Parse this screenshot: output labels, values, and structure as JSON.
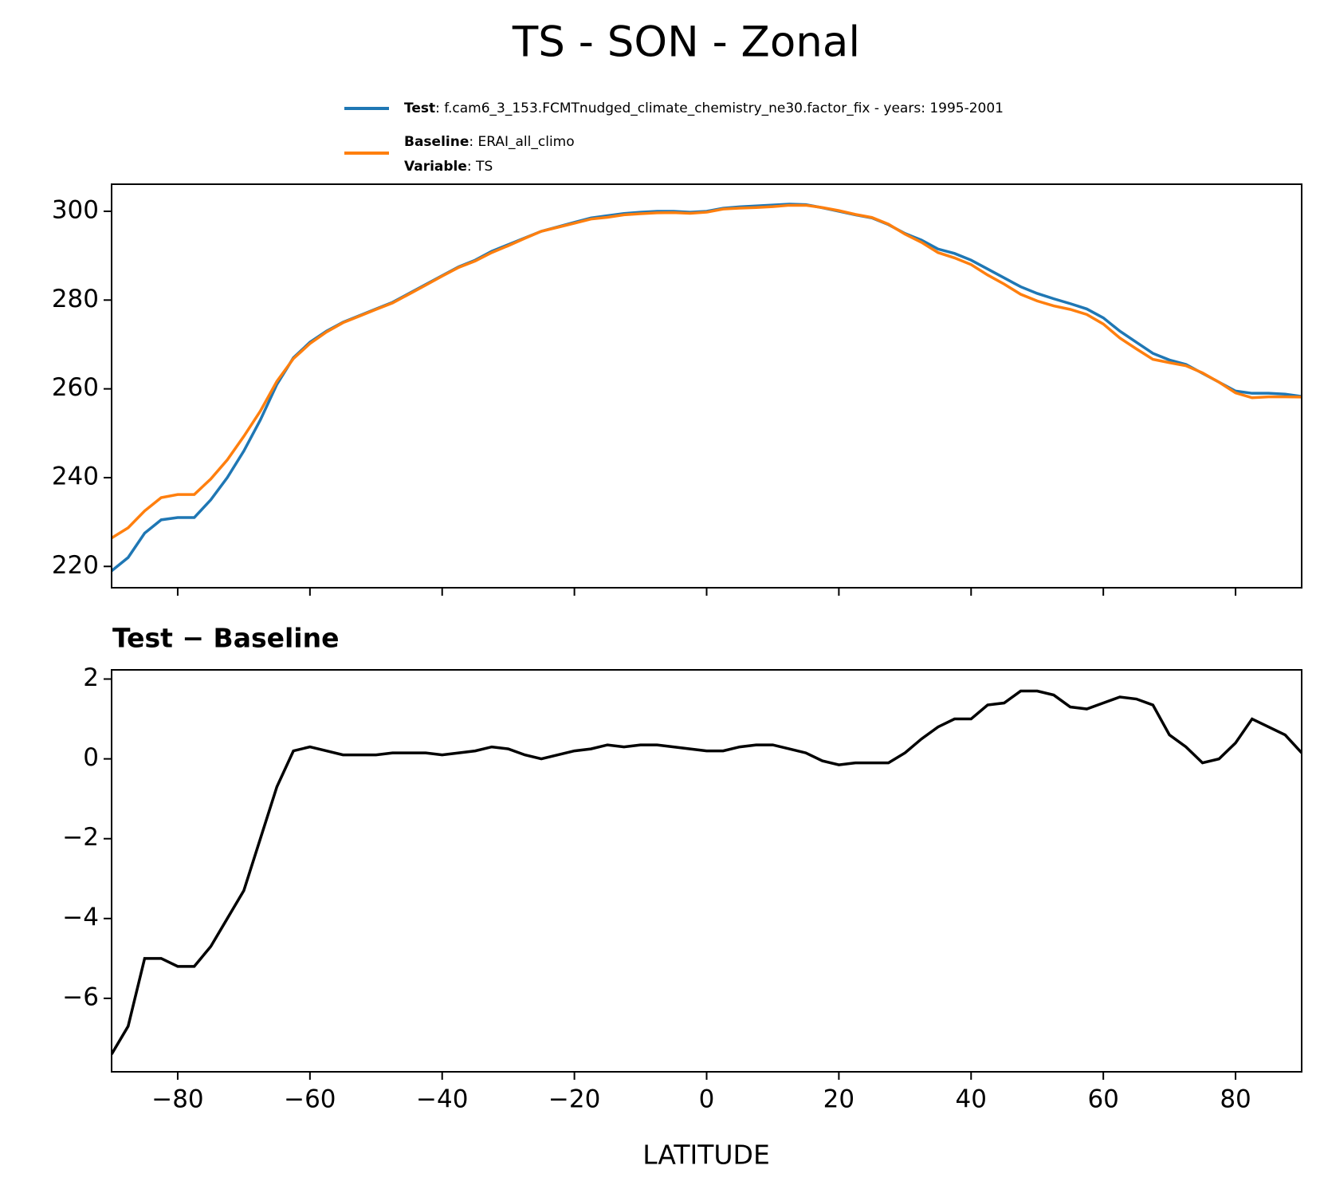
{
  "chart_data": [
    {
      "type": "line",
      "title": "TS - SON - Zonal",
      "x": [
        -90,
        -87.5,
        -85,
        -82.5,
        -80,
        -77.5,
        -75,
        -72.5,
        -70,
        -67.5,
        -65,
        -62.5,
        -60,
        -57.5,
        -55,
        -52.5,
        -50,
        -47.5,
        -45,
        -42.5,
        -40,
        -37.5,
        -35,
        -32.5,
        -30,
        -27.5,
        -25,
        -22.5,
        -20,
        -17.5,
        -15,
        -12.5,
        -10,
        -7.5,
        -5,
        -2.5,
        0,
        2.5,
        5,
        7.5,
        10,
        12.5,
        15,
        17.5,
        20,
        22.5,
        25,
        27.5,
        30,
        32.5,
        35,
        37.5,
        40,
        42.5,
        45,
        47.5,
        50,
        52.5,
        55,
        57.5,
        60,
        62.5,
        65,
        67.5,
        70,
        72.5,
        75,
        77.5,
        80,
        82.5,
        85,
        87.5,
        90
      ],
      "series": [
        {
          "name": "Test",
          "description": ": f.cam6_3_153.FCMTnudged_climate_chemistry_ne30.factor_fix - years: 1995-2001",
          "color": "#1f77b4",
          "values": [
            219,
            222,
            227.5,
            230.5,
            231,
            231,
            235,
            240,
            246,
            253,
            261,
            267,
            270.5,
            273,
            275,
            276.5,
            278,
            279.5,
            281.5,
            283.5,
            285.5,
            287.5,
            289,
            291,
            292.5,
            294,
            295.5,
            296.5,
            297.5,
            298.5,
            299,
            299.5,
            299.8,
            300,
            300,
            299.8,
            300,
            300.7,
            301,
            301.2,
            301.4,
            301.6,
            301.5,
            300.8,
            300,
            299.2,
            298.5,
            297,
            295,
            293.5,
            291.5,
            290.5,
            289,
            287,
            285,
            283,
            281.5,
            280.3,
            279.2,
            278,
            276,
            273,
            270.5,
            268,
            266.5,
            265.5,
            263.5,
            261.5,
            259.5,
            259,
            259,
            258.8,
            258.3
          ]
        },
        {
          "name": "Baseline",
          "description": ": ERAI_all_climo",
          "color": "#ff7f0e",
          "values": [
            226.4,
            228.7,
            232.5,
            235.5,
            236.2,
            236.2,
            239.7,
            244,
            249.3,
            255,
            261.7,
            266.8,
            270.2,
            272.8,
            274.9,
            276.4,
            277.9,
            279.35,
            281.35,
            283.35,
            285.4,
            287.35,
            288.8,
            290.7,
            292.25,
            293.9,
            295.5,
            296.4,
            297.3,
            298.25,
            298.65,
            299.2,
            299.45,
            299.65,
            299.7,
            299.55,
            299.8,
            300.5,
            300.7,
            300.85,
            301.05,
            301.35,
            301.35,
            300.85,
            300.15,
            299.3,
            298.6,
            297.1,
            294.85,
            293,
            290.7,
            289.5,
            288,
            285.65,
            283.6,
            281.3,
            279.8,
            278.7,
            277.9,
            276.75,
            274.6,
            271.45,
            269,
            266.65,
            265.9,
            265.2,
            263.6,
            261.5,
            259.1,
            258,
            258.2,
            258.2,
            258.15
          ]
        }
      ],
      "legend_extra": {
        "label": "Variable",
        "text": ": TS"
      },
      "xlim": [
        -90,
        90
      ],
      "xticks": [
        -80,
        -60,
        -40,
        -20,
        0,
        20,
        40,
        60,
        80
      ],
      "ylim": [
        215.2,
        306.1
      ],
      "yticks": [
        220,
        240,
        260,
        280,
        300
      ]
    },
    {
      "type": "line",
      "title": "Test − Baseline",
      "xlabel": "LATITUDE",
      "x": [
        -90,
        -87.5,
        -85,
        -82.5,
        -80,
        -77.5,
        -75,
        -72.5,
        -70,
        -67.5,
        -65,
        -62.5,
        -60,
        -57.5,
        -55,
        -52.5,
        -50,
        -47.5,
        -45,
        -42.5,
        -40,
        -37.5,
        -35,
        -32.5,
        -30,
        -27.5,
        -25,
        -22.5,
        -20,
        -17.5,
        -15,
        -12.5,
        -10,
        -7.5,
        -5,
        -2.5,
        0,
        2.5,
        5,
        7.5,
        10,
        12.5,
        15,
        17.5,
        20,
        22.5,
        25,
        27.5,
        30,
        32.5,
        35,
        37.5,
        40,
        42.5,
        45,
        47.5,
        50,
        52.5,
        55,
        57.5,
        60,
        62.5,
        65,
        67.5,
        70,
        72.5,
        75,
        77.5,
        80,
        82.5,
        85,
        87.5,
        90
      ],
      "series": [
        {
          "color": "#000000",
          "values": [
            -7.4,
            -6.7,
            -5.0,
            -5.0,
            -5.2,
            -5.2,
            -4.7,
            -4.0,
            -3.3,
            -2.0,
            -0.7,
            0.2,
            0.3,
            0.2,
            0.1,
            0.1,
            0.1,
            0.15,
            0.15,
            0.15,
            0.1,
            0.15,
            0.2,
            0.3,
            0.25,
            0.1,
            0.0,
            0.1,
            0.2,
            0.25,
            0.35,
            0.3,
            0.35,
            0.35,
            0.3,
            0.25,
            0.2,
            0.2,
            0.3,
            0.35,
            0.35,
            0.25,
            0.15,
            -0.05,
            -0.15,
            -0.1,
            -0.1,
            -0.1,
            0.15,
            0.5,
            0.8,
            1.0,
            1.0,
            1.35,
            1.4,
            1.7,
            1.7,
            1.6,
            1.3,
            1.25,
            1.4,
            1.55,
            1.5,
            1.35,
            0.6,
            0.3,
            -0.1,
            0.0,
            0.4,
            1.0,
            0.8,
            0.6,
            0.15
          ]
        }
      ],
      "xlim": [
        -90,
        90
      ],
      "xticks": [
        {
          "value": -80,
          "label": "−80"
        },
        {
          "value": -60,
          "label": "−60"
        },
        {
          "value": -40,
          "label": "−40"
        },
        {
          "value": -20,
          "label": "−20"
        },
        0,
        20,
        40,
        60,
        80
      ],
      "ylim": [
        -7.84,
        2.23
      ],
      "yticks": [
        {
          "value": -6,
          "label": "−6"
        },
        {
          "value": -4,
          "label": "−4"
        },
        {
          "value": -2,
          "label": "−2"
        },
        0,
        2
      ]
    }
  ]
}
